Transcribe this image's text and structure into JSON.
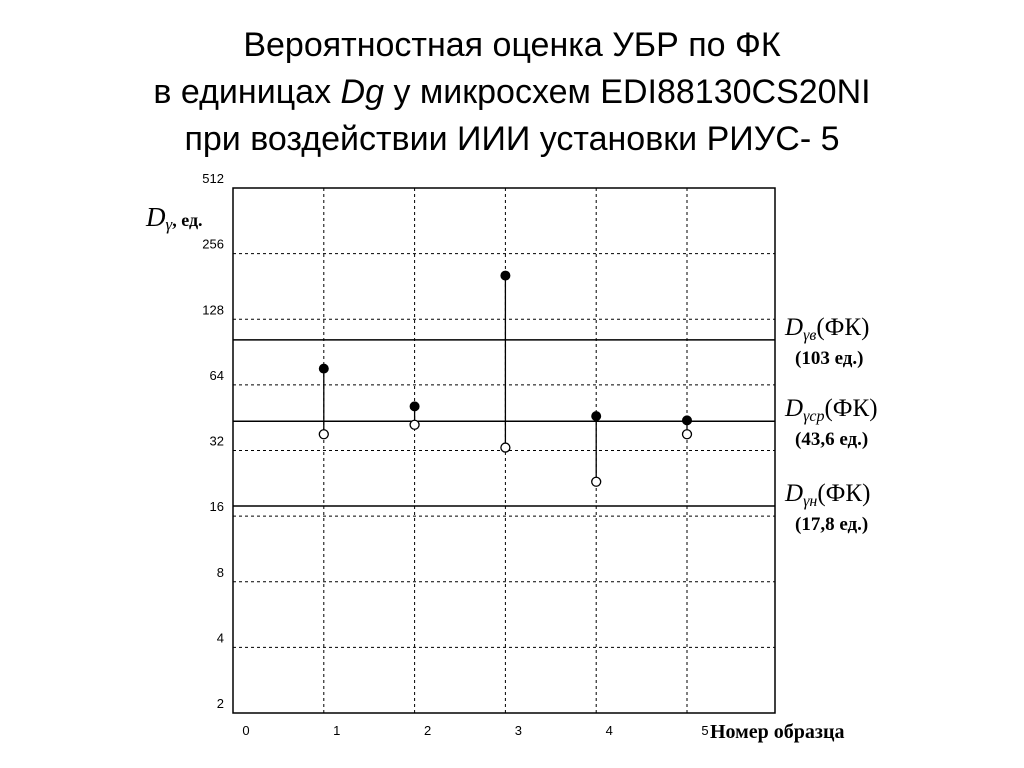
{
  "title": {
    "line1": "Вероятностная оценка УБР по ФК",
    "line2_prefix": "в единицах ",
    "line2_var": "Dg",
    "line2_suffix": " у микросхем EDI88130CS20NI",
    "line3": "при воздействии ИИИ установки РИУС- 5"
  },
  "chart_data": {
    "type": "scatter",
    "y_scale": "log2",
    "ylim": [
      2,
      512
    ],
    "xlim": [
      0,
      5
    ],
    "grid": true,
    "yticks": [
      "2",
      "4",
      "8",
      "16",
      "32",
      "64",
      "128",
      "256",
      "512"
    ],
    "xticks": [
      "0",
      "1",
      "2",
      "3",
      "4",
      "5"
    ],
    "ylabel": {
      "main": "D",
      "sub": "γ",
      "rest": ", ед."
    },
    "xlabel": "Номер образца",
    "series": [
      {
        "marker": "filled",
        "x": [
          1,
          2,
          3,
          4,
          5
        ],
        "y": [
          76,
          51,
          203,
          46,
          44
        ]
      },
      {
        "marker": "open",
        "x": [
          1,
          2,
          3,
          4,
          5
        ],
        "y": [
          38,
          42,
          33,
          23,
          38
        ]
      }
    ],
    "reference_lines": [
      {
        "name_main": "D",
        "name_sub": "γв",
        "name_rest": "(ФК)",
        "value_label": "(103 ед.)",
        "value": 103
      },
      {
        "name_main": "D",
        "name_sub": "γср",
        "name_rest": "(ФК)",
        "value_label": "(43,6 ед.)",
        "value": 43.6
      },
      {
        "name_main": "D",
        "name_sub": "γн",
        "name_rest": "(ФК)",
        "value_label": "(17,8 ед.)",
        "value": 17.8
      }
    ]
  }
}
